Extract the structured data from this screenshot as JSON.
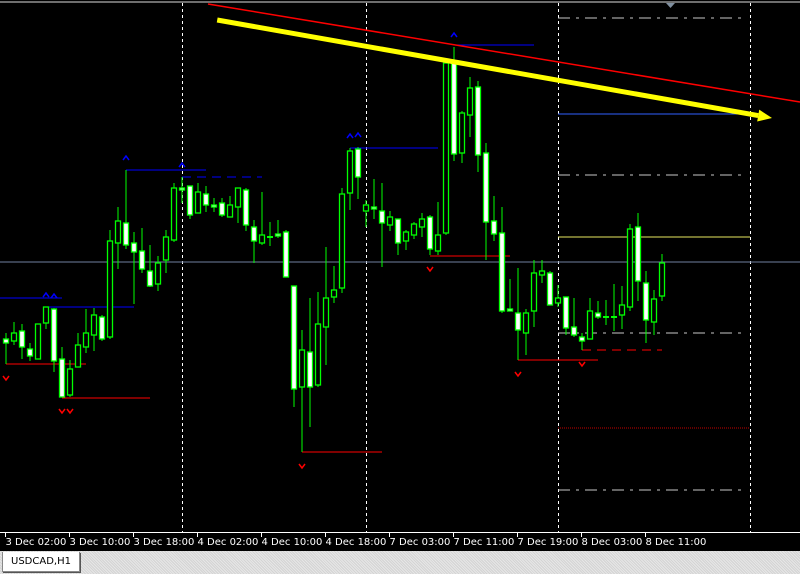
{
  "window": {
    "tab_label": "USDCAD,H1"
  },
  "colors": {
    "background": "#000000",
    "candle_outline": "#00ff00",
    "bear_fill": "#ffffff",
    "bull_fill": "#000000",
    "trendline": "#ff0000",
    "arrow": "#ffff00",
    "fractal_up": "#0000ff",
    "fractal_down": "#ff0000",
    "bid_line": "#7080a0",
    "separator": "#ffffff"
  },
  "chart_data": {
    "type": "candlestick",
    "symbol": "USDCAD",
    "timeframe": "H1",
    "grid": false,
    "x_ticks": [
      {
        "bar": 0,
        "label": "3 Dec 02:00"
      },
      {
        "bar": 8,
        "label": "3 Dec 10:00"
      },
      {
        "bar": 16,
        "label": "3 Dec 18:00"
      },
      {
        "bar": 24,
        "label": "4 Dec 02:00"
      },
      {
        "bar": 32,
        "label": "4 Dec 10:00"
      },
      {
        "bar": 40,
        "label": "4 Dec 18:00"
      },
      {
        "bar": 48,
        "label": "7 Dec 03:00"
      },
      {
        "bar": 56,
        "label": "7 Dec 11:00"
      },
      {
        "bar": 64,
        "label": "7 Dec 19:00"
      },
      {
        "bar": 72,
        "label": "8 Dec 03:00"
      },
      {
        "bar": 80,
        "label": "8 Dec 11:00"
      }
    ],
    "candles_ohlc": [
      [
        1.33661,
        1.33667,
        1.33636,
        1.33657
      ],
      [
        1.33659,
        1.33678,
        1.33655,
        1.33667
      ],
      [
        1.33669,
        1.33676,
        1.33641,
        1.33653
      ],
      [
        1.33651,
        1.33657,
        1.33639,
        1.33644
      ],
      [
        1.33641,
        1.33676,
        1.33641,
        1.33676
      ],
      [
        1.33677,
        1.33693,
        1.33671,
        1.33693
      ],
      [
        1.33691,
        1.33692,
        1.33628,
        1.33639
      ],
      [
        1.33641,
        1.33653,
        1.33603,
        1.33603
      ],
      [
        1.33605,
        1.3364,
        1.33603,
        1.33631
      ],
      [
        1.33633,
        1.33667,
        1.33633,
        1.33655
      ],
      [
        1.33653,
        1.33691,
        1.33647,
        1.33667
      ],
      [
        1.33665,
        1.33692,
        1.33649,
        1.33685
      ],
      [
        1.33683,
        1.33685,
        1.33659,
        1.33661
      ],
      [
        1.33663,
        1.3377,
        1.33661,
        1.33759
      ],
      [
        1.33757,
        1.33793,
        1.33731,
        1.33779
      ],
      [
        1.33777,
        1.3383,
        1.33751,
        1.33755
      ],
      [
        1.33757,
        1.33768,
        1.33696,
        1.33748
      ],
      [
        1.33749,
        1.33772,
        1.33727,
        1.33731
      ],
      [
        1.33729,
        1.33755,
        1.33713,
        1.33714
      ],
      [
        1.33716,
        1.33744,
        1.33709,
        1.33737
      ],
      [
        1.3374,
        1.3377,
        1.33727,
        1.33763
      ],
      [
        1.3376,
        1.33817,
        1.33758,
        1.33812
      ],
      [
        1.33812,
        1.33823,
        1.33797,
        1.3381
      ],
      [
        1.33814,
        1.33814,
        1.33781,
        1.33785
      ],
      [
        1.33787,
        1.33817,
        1.33787,
        1.33808
      ],
      [
        1.33806,
        1.33814,
        1.33788,
        1.33795
      ],
      [
        1.33795,
        1.33802,
        1.33788,
        1.33793
      ],
      [
        1.33797,
        1.33802,
        1.33783,
        1.33785
      ],
      [
        1.33783,
        1.33804,
        1.33783,
        1.33795
      ],
      [
        1.33793,
        1.33812,
        1.33777,
        1.33812
      ],
      [
        1.3381,
        1.33812,
        1.33769,
        1.33775
      ],
      [
        1.33773,
        1.3378,
        1.33737,
        1.33759
      ],
      [
        1.33757,
        1.33808,
        1.33755,
        1.33765
      ],
      [
        1.33763,
        1.33778,
        1.33754,
        1.33763
      ],
      [
        1.33766,
        1.3378,
        1.33762,
        1.33764
      ],
      [
        1.33768,
        1.3377,
        1.33723,
        1.33723
      ],
      [
        1.33714,
        1.33714,
        1.33593,
        1.33611
      ],
      [
        1.33613,
        1.3367,
        1.33548,
        1.3365
      ],
      [
        1.33648,
        1.33702,
        1.33573,
        1.33613
      ],
      [
        1.33615,
        1.33708,
        1.33613,
        1.33676
      ],
      [
        1.33673,
        1.33753,
        1.33635,
        1.33702
      ],
      [
        1.33703,
        1.33734,
        1.33697,
        1.3371
      ],
      [
        1.33712,
        1.33812,
        1.33707,
        1.33806
      ],
      [
        1.33807,
        1.33852,
        1.3379,
        1.33849
      ],
      [
        1.33851,
        1.33853,
        1.33801,
        1.33823
      ],
      [
        1.33789,
        1.338,
        1.33773,
        1.33795
      ],
      [
        1.33793,
        1.33821,
        1.33781,
        1.33791
      ],
      [
        1.33789,
        1.33817,
        1.33733,
        1.33777
      ],
      [
        1.33775,
        1.33789,
        1.33769,
        1.33783
      ],
      [
        1.33781,
        1.33781,
        1.33745,
        1.33757
      ],
      [
        1.33759,
        1.3377,
        1.3375,
        1.33768
      ],
      [
        1.33765,
        1.33778,
        1.33761,
        1.33776
      ],
      [
        1.33773,
        1.33787,
        1.33763,
        1.33781
      ],
      [
        1.33783,
        1.33785,
        1.33745,
        1.33751
      ],
      [
        1.33749,
        1.33798,
        1.33745,
        1.33765
      ],
      [
        1.33767,
        1.33937,
        1.33765,
        1.33937
      ],
      [
        1.33937,
        1.33953,
        1.33839,
        1.33846
      ],
      [
        1.33847,
        1.33889,
        1.33837,
        1.33887
      ],
      [
        1.33885,
        1.33923,
        1.33863,
        1.33912
      ],
      [
        1.33913,
        1.33919,
        1.33828,
        1.33845
      ],
      [
        1.33847,
        1.33857,
        1.3374,
        1.33778
      ],
      [
        1.33779,
        1.33804,
        1.33759,
        1.33766
      ],
      [
        1.33767,
        1.33793,
        1.33687,
        1.33689
      ],
      [
        1.33691,
        1.33721,
        1.33689,
        1.33689
      ],
      [
        1.33687,
        1.33732,
        1.3364,
        1.3367
      ],
      [
        1.33667,
        1.33691,
        1.33645,
        1.33687
      ],
      [
        1.33689,
        1.3374,
        1.33673,
        1.33727
      ],
      [
        1.33725,
        1.3374,
        1.33717,
        1.33729
      ],
      [
        1.33727,
        1.33729,
        1.33695,
        1.33695
      ],
      [
        1.33697,
        1.33715,
        1.33693,
        1.33702
      ],
      [
        1.33703,
        1.33703,
        1.33665,
        1.33672
      ],
      [
        1.33673,
        1.33702,
        1.33663,
        1.33665
      ],
      [
        1.33663,
        1.33667,
        1.3365,
        1.33659
      ],
      [
        1.33661,
        1.33702,
        1.33661,
        1.33689
      ],
      [
        1.33687,
        1.33699,
        1.33681,
        1.33683
      ],
      [
        1.33683,
        1.337,
        1.33675,
        1.33683
      ],
      [
        1.33683,
        1.33716,
        1.33669,
        1.33683
      ],
      [
        1.33685,
        1.33714,
        1.33671,
        1.33695
      ],
      [
        1.33693,
        1.33776,
        1.33689,
        1.33771
      ],
      [
        1.33773,
        1.33787,
        1.33699,
        1.33719
      ],
      [
        1.33717,
        1.33729,
        1.33657,
        1.3368
      ],
      [
        1.33678,
        1.3371,
        1.33665,
        1.33701
      ],
      [
        1.33704,
        1.33746,
        1.33699,
        1.33737
      ]
    ],
    "period_separators_bar": [
      22,
      45,
      69,
      93
    ],
    "bid_price": 1.33738,
    "trendline": {
      "from": {
        "bar": 25.25,
        "price": 1.33996
      },
      "to": {
        "bar": 99.25,
        "price": 1.33898
      }
    },
    "arrow": {
      "from": {
        "bar": 26.4,
        "price": 1.3398
      },
      "to": {
        "bar": 95.75,
        "price": 1.33882
      }
    },
    "levels": [
      {
        "price": 1.33982,
        "from_bar": 69,
        "to_bar": 92.5,
        "style": "dashdot",
        "color": "#c8c8c8"
      },
      {
        "price": 1.33825,
        "from_bar": 69,
        "to_bar": 92.5,
        "style": "dashdot",
        "color": "#c8c8c8"
      },
      {
        "price": 1.33667,
        "from_bar": 69,
        "to_bar": 92.5,
        "style": "dashdot",
        "color": "#c8c8c8"
      },
      {
        "price": 1.3351,
        "from_bar": 69,
        "to_bar": 92.5,
        "style": "dashdot",
        "color": "#c8c8c8"
      },
      {
        "price": 1.33886,
        "from_bar": 69,
        "to_bar": 93,
        "style": "solid",
        "color": "#3060ff"
      },
      {
        "price": 1.33763,
        "from_bar": 69,
        "to_bar": 93,
        "style": "solid",
        "color": "#e8e860"
      },
      {
        "price": 1.33572,
        "from_bar": 69,
        "to_bar": 93,
        "style": "dotted",
        "color": "#c00000"
      }
    ],
    "fractal_up_lines": [
      {
        "price": 1.33702,
        "from_bar": -0.75,
        "to_bar": 7,
        "style": "solid"
      },
      {
        "price": 1.33693,
        "from_bar": 5,
        "to_bar": 16,
        "style": "solid"
      },
      {
        "price": 1.3383,
        "from_bar": 15,
        "to_bar": 25,
        "style": "solid"
      },
      {
        "price": 1.33823,
        "from_bar": 22,
        "to_bar": 32,
        "style": "dashed"
      },
      {
        "price": 1.33852,
        "from_bar": 43,
        "to_bar": 54,
        "style": "solid"
      },
      {
        "price": 1.33955,
        "from_bar": 56,
        "to_bar": 66,
        "style": "solid"
      }
    ],
    "fractal_down_lines": [
      {
        "price": 1.33636,
        "from_bar": 0,
        "to_bar": 10,
        "style": "solid"
      },
      {
        "price": 1.33602,
        "from_bar": 7,
        "to_bar": 18,
        "style": "solid"
      },
      {
        "price": 1.33548,
        "from_bar": 37,
        "to_bar": 47,
        "style": "solid"
      },
      {
        "price": 1.33744,
        "from_bar": 53,
        "to_bar": 63,
        "style": "solid"
      },
      {
        "price": 1.3364,
        "from_bar": 64,
        "to_bar": 74,
        "style": "solid"
      },
      {
        "price": 1.3365,
        "from_bar": 72,
        "to_bar": 82,
        "style": "dashed"
      }
    ],
    "fractal_up_bars": [
      5,
      6,
      15,
      22,
      43,
      44,
      56
    ],
    "fractal_down_bars": [
      0,
      7,
      8,
      37,
      53,
      64,
      72
    ]
  }
}
